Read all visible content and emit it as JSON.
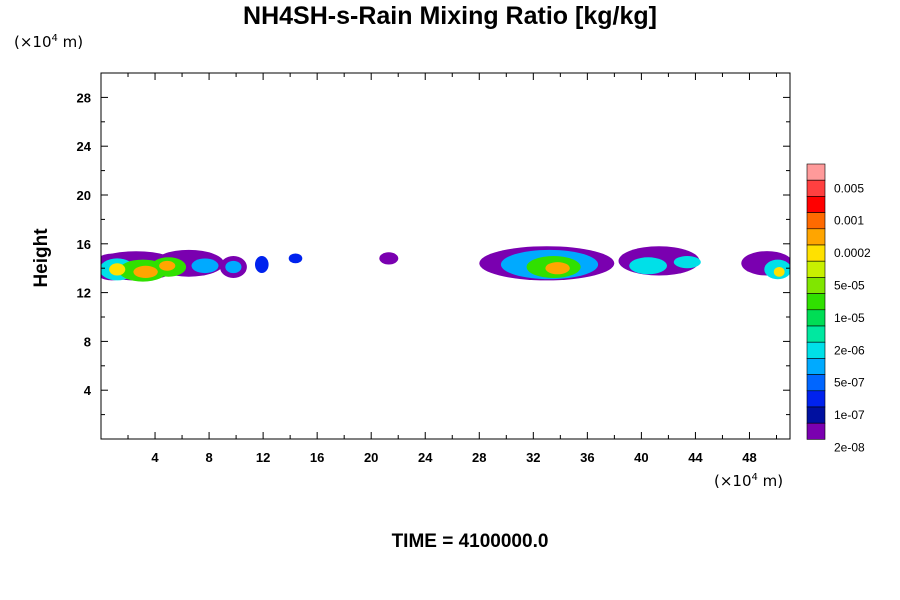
{
  "title": "NH4SH-s-Rain Mixing Ratio [kg/kg]",
  "time_label": "TIME = 4100000.0",
  "y_unit": {
    "prefix": "(×10",
    "exp": "4",
    "suffix": " m)"
  },
  "x_unit": {
    "prefix": "(×10",
    "exp": "4",
    "suffix": " m)"
  },
  "chart_data": {
    "type": "heatmap",
    "title": "NH4SH-s-Rain Mixing Ratio [kg/kg]",
    "ylabel": "Height",
    "xlabel": "",
    "xlim": [
      0,
      51
    ],
    "ylim": [
      0,
      30
    ],
    "x_ticks": [
      4,
      8,
      12,
      16,
      20,
      24,
      28,
      32,
      36,
      40,
      44,
      48
    ],
    "y_ticks": [
      4,
      8,
      12,
      16,
      20,
      24,
      28
    ],
    "colorbar": {
      "labels": [
        "0.005",
        "0.001",
        "0.0002",
        "5e-05",
        "1e-05",
        "2e-06",
        "5e-07",
        "1e-07",
        "2e-08"
      ],
      "colors": [
        "#ff9a9a",
        "#ff4040",
        "#ff0000",
        "#ff6a00",
        "#ffa500",
        "#ffe100",
        "#c8f000",
        "#80e600",
        "#30e000",
        "#00dd55",
        "#00e8a0",
        "#00e0e8",
        "#00aaff",
        "#0066ff",
        "#0022ee",
        "#0010a0",
        "#7a00b0"
      ]
    },
    "cells": [
      {
        "x": 0.8,
        "y": 14.1,
        "rx": 1.4,
        "ry": 1.1,
        "level": 0
      },
      {
        "x": 2.6,
        "y": 14.2,
        "rx": 3.2,
        "ry": 1.2,
        "level": 0
      },
      {
        "x": 6.5,
        "y": 14.4,
        "rx": 2.6,
        "ry": 1.1,
        "level": 0
      },
      {
        "x": 9.8,
        "y": 14.1,
        "rx": 1.0,
        "ry": 0.9,
        "level": 0
      },
      {
        "x": 1.2,
        "y": 13.9,
        "rx": 1.3,
        "ry": 0.9,
        "level": 4
      },
      {
        "x": 3.1,
        "y": 13.8,
        "rx": 1.8,
        "ry": 0.9,
        "level": 5
      },
      {
        "x": 5.0,
        "y": 14.1,
        "rx": 1.3,
        "ry": 0.8,
        "level": 5
      },
      {
        "x": 7.7,
        "y": 14.2,
        "rx": 1.0,
        "ry": 0.6,
        "level": 3
      },
      {
        "x": 9.8,
        "y": 14.1,
        "rx": 0.6,
        "ry": 0.5,
        "level": 3
      },
      {
        "x": 1.2,
        "y": 13.9,
        "rx": 0.6,
        "ry": 0.5,
        "level": 7
      },
      {
        "x": 3.3,
        "y": 13.7,
        "rx": 0.9,
        "ry": 0.5,
        "level": 8
      },
      {
        "x": 4.9,
        "y": 14.2,
        "rx": 0.6,
        "ry": 0.4,
        "level": 8
      },
      {
        "x": 11.9,
        "y": 14.3,
        "rx": 0.5,
        "ry": 0.7,
        "level": 1
      },
      {
        "x": 14.4,
        "y": 14.8,
        "rx": 0.5,
        "ry": 0.4,
        "level": 1
      },
      {
        "x": 21.3,
        "y": 14.8,
        "rx": 0.7,
        "ry": 0.5,
        "level": 0
      },
      {
        "x": 33.0,
        "y": 14.4,
        "rx": 5.0,
        "ry": 1.4,
        "level": 0
      },
      {
        "x": 33.2,
        "y": 14.3,
        "rx": 3.6,
        "ry": 1.2,
        "level": 3
      },
      {
        "x": 33.5,
        "y": 14.1,
        "rx": 2.0,
        "ry": 0.9,
        "level": 5
      },
      {
        "x": 33.8,
        "y": 14.0,
        "rx": 0.9,
        "ry": 0.5,
        "level": 8
      },
      {
        "x": 41.3,
        "y": 14.6,
        "rx": 3.0,
        "ry": 1.2,
        "level": 0
      },
      {
        "x": 40.5,
        "y": 14.2,
        "rx": 1.4,
        "ry": 0.7,
        "level": 4
      },
      {
        "x": 43.4,
        "y": 14.5,
        "rx": 1.0,
        "ry": 0.5,
        "level": 4
      },
      {
        "x": 49.3,
        "y": 14.4,
        "rx": 1.9,
        "ry": 1.0,
        "level": 0
      },
      {
        "x": 50.1,
        "y": 13.9,
        "rx": 1.0,
        "ry": 0.8,
        "level": 4
      },
      {
        "x": 50.2,
        "y": 13.7,
        "rx": 0.4,
        "ry": 0.4,
        "level": 7
      }
    ]
  }
}
